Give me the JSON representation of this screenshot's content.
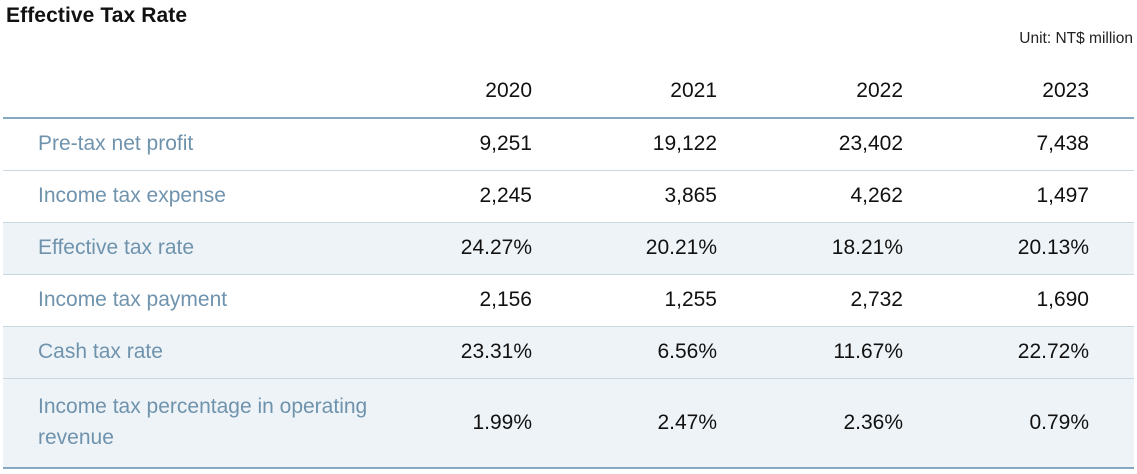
{
  "title": "Effective Tax Rate",
  "unit": "Unit: NT$ million",
  "table": {
    "columns": [
      "2020",
      "2021",
      "2022",
      "2023"
    ],
    "rows": [
      {
        "label": "Pre-tax net profit",
        "values": [
          "9,251",
          "19,122",
          "23,402",
          "7,438"
        ]
      },
      {
        "label": "Income tax expense",
        "values": [
          "2,245",
          "3,865",
          "4,262",
          "1,497"
        ]
      },
      {
        "label": "Effective tax rate",
        "values": [
          "24.27%",
          "20.21%",
          "18.21%",
          "20.13%"
        ]
      },
      {
        "label": "Income tax payment",
        "values": [
          "2,156",
          "1,255",
          "2,732",
          "1,690"
        ]
      },
      {
        "label": "Cash tax rate",
        "values": [
          "23.31%",
          "6.56%",
          "11.67%",
          "22.72%"
        ]
      },
      {
        "label": "Income tax percentage in operating revenue",
        "values": [
          "1.99%",
          "2.47%",
          "2.36%",
          "0.79%"
        ]
      }
    ]
  },
  "colors": {
    "label_text": "#6f93ad",
    "rule": "#86a8c0",
    "row_divider": "#c9d7e1",
    "shaded_row": "#eef3f7"
  }
}
